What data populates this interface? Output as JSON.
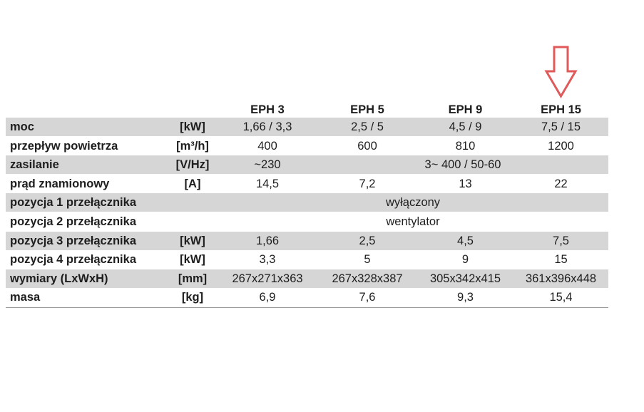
{
  "table": {
    "columns": [
      "EPH 3",
      "EPH 5",
      "EPH 9",
      "EPH 15"
    ],
    "rows": [
      {
        "label": "moc",
        "unit": "[kW]",
        "cells": [
          "1,66 / 3,3",
          "2,5 / 5",
          "4,5 / 9",
          "7,5 / 15"
        ]
      },
      {
        "label": "przepływ powietrza",
        "unit": "[m³/h]",
        "cells": [
          "400",
          "600",
          "810",
          "1200"
        ]
      },
      {
        "label": "zasilanie",
        "unit": "[V/Hz]",
        "cells": [
          "~230",
          "3~ 400 / 50-60"
        ]
      },
      {
        "label": "prąd znamionowy",
        "unit": "[A]",
        "cells": [
          "14,5",
          "7,2",
          "13",
          "22"
        ]
      },
      {
        "label": "pozycja 1 przełącznika",
        "cells": [
          "wyłączony"
        ]
      },
      {
        "label": "pozycja 2 przełącznika",
        "cells": [
          "wentylator"
        ]
      },
      {
        "label": "pozycja 3 przełącznika",
        "unit": "[kW]",
        "cells": [
          "1,66",
          "2,5",
          "4,5",
          "7,5"
        ]
      },
      {
        "label": "pozycja 4 przełącznika",
        "unit": "[kW]",
        "cells": [
          "3,3",
          "5",
          "9",
          "15"
        ]
      },
      {
        "label": "wymiary (LxWxH)",
        "unit": "[mm]",
        "cells": [
          "267x271x363",
          "267x328x387",
          "305x342x415",
          "361x396x448"
        ]
      },
      {
        "label": "masa",
        "unit": "[kg]",
        "cells": [
          "6,9",
          "7,6",
          "9,3",
          "15,4"
        ]
      }
    ]
  }
}
